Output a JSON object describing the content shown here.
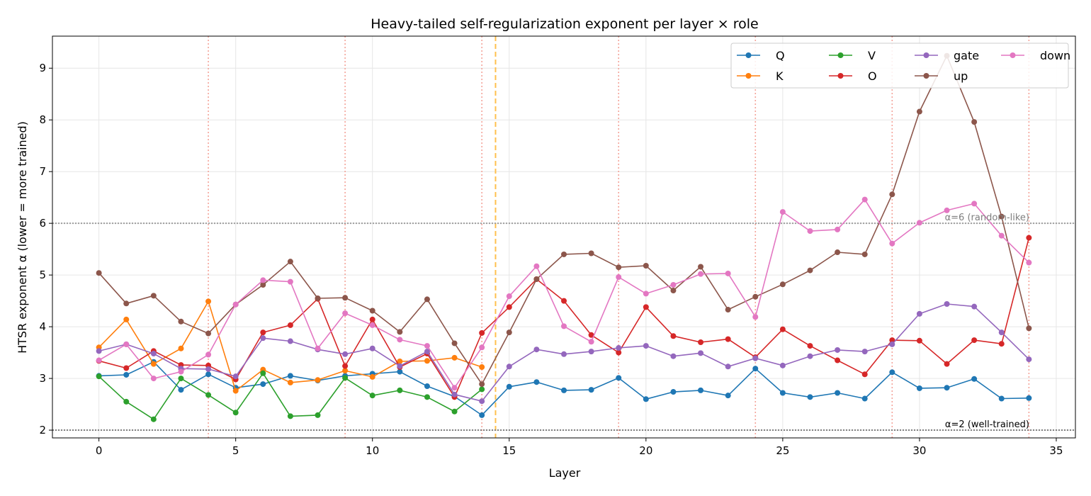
{
  "chart_data": {
    "type": "line",
    "title": "Heavy-tailed self-regularization exponent per layer × role",
    "xlabel": "Layer",
    "ylabel": "HTSR exponent α  (lower = more trained)",
    "xlim": [
      -1.7,
      35.7
    ],
    "ylim": [
      1.85,
      9.62
    ],
    "xticks": [
      0,
      5,
      10,
      15,
      20,
      25,
      30,
      35
    ],
    "yticks": [
      2,
      3,
      4,
      5,
      6,
      7,
      8,
      9
    ],
    "grid": true,
    "legend_position": "top-right",
    "series": [
      {
        "name": "Q",
        "color": "#1f77b4",
        "x": [
          0,
          1,
          2,
          3,
          4,
          5,
          6,
          7,
          8,
          9,
          10,
          11,
          12,
          13,
          14,
          15,
          16,
          17,
          18,
          19,
          20,
          21,
          22,
          23,
          24,
          25,
          26,
          27,
          28,
          29,
          30,
          31,
          32,
          33,
          34
        ],
        "values": [
          3.05,
          3.07,
          3.32,
          2.78,
          3.08,
          2.82,
          2.89,
          3.05,
          2.96,
          3.05,
          3.09,
          3.13,
          2.85,
          2.65,
          2.29,
          2.84,
          2.93,
          2.77,
          2.78,
          3.01,
          2.6,
          2.74,
          2.77,
          2.67,
          3.19,
          2.72,
          2.64,
          2.72,
          2.61,
          3.12,
          2.81,
          2.82,
          2.99,
          2.61,
          2.62
        ]
      },
      {
        "name": "K",
        "color": "#ff7f0e",
        "x": [
          0,
          1,
          2,
          3,
          4,
          5,
          6,
          7,
          8,
          9,
          10,
          11,
          12,
          13,
          14
        ],
        "values": [
          3.6,
          4.14,
          3.28,
          3.58,
          4.49,
          2.76,
          3.17,
          2.92,
          2.97,
          3.15,
          3.03,
          3.33,
          3.34,
          3.4,
          3.22
        ]
      },
      {
        "name": "V",
        "color": "#2ca02c",
        "x": [
          0,
          1,
          2,
          3,
          4,
          5,
          6,
          7,
          8,
          9,
          10,
          11,
          12,
          13,
          14
        ],
        "values": [
          3.04,
          2.55,
          2.21,
          3.0,
          2.68,
          2.34,
          3.1,
          2.27,
          2.29,
          3.01,
          2.67,
          2.77,
          2.64,
          2.36,
          2.79
        ]
      },
      {
        "name": "O",
        "color": "#d62728",
        "x": [
          0,
          1,
          2,
          3,
          4,
          5,
          6,
          7,
          8,
          9,
          10,
          11,
          12,
          13,
          14,
          15,
          16,
          17,
          18,
          19,
          20,
          21,
          22,
          23,
          24,
          25,
          26,
          27,
          28,
          29,
          30,
          31,
          32,
          33,
          34
        ],
        "values": [
          3.34,
          3.2,
          3.53,
          3.26,
          3.25,
          2.98,
          3.89,
          4.03,
          4.54,
          3.24,
          4.14,
          3.22,
          3.48,
          2.64,
          3.88,
          4.38,
          4.92,
          4.5,
          3.84,
          3.5,
          4.38,
          3.82,
          3.7,
          3.76,
          3.41,
          3.95,
          3.63,
          3.35,
          3.08,
          3.74,
          3.73,
          3.28,
          3.74,
          3.67,
          5.72
        ]
      },
      {
        "name": "gate",
        "color": "#9467bd",
        "x": [
          0,
          1,
          2,
          3,
          4,
          5,
          6,
          7,
          8,
          9,
          10,
          11,
          12,
          13,
          14,
          15,
          16,
          17,
          18,
          19,
          20,
          21,
          22,
          23,
          24,
          25,
          26,
          27,
          28,
          29,
          30,
          31,
          32,
          33,
          34
        ],
        "values": [
          3.53,
          3.66,
          3.48,
          3.19,
          3.18,
          3.04,
          3.78,
          3.72,
          3.56,
          3.47,
          3.58,
          3.24,
          3.52,
          2.69,
          2.56,
          3.23,
          3.56,
          3.47,
          3.52,
          3.59,
          3.63,
          3.43,
          3.49,
          3.23,
          3.39,
          3.25,
          3.43,
          3.55,
          3.52,
          3.66,
          4.25,
          4.44,
          4.39,
          3.89,
          3.37
        ]
      },
      {
        "name": "up",
        "color": "#8c564b",
        "x": [
          0,
          1,
          2,
          3,
          4,
          5,
          6,
          7,
          8,
          9,
          10,
          11,
          12,
          13,
          14,
          15,
          16,
          17,
          18,
          19,
          20,
          21,
          22,
          23,
          24,
          25,
          26,
          27,
          28,
          29,
          30,
          31,
          32,
          33,
          34
        ],
        "values": [
          5.04,
          4.45,
          4.6,
          4.1,
          3.87,
          4.43,
          4.81,
          5.26,
          4.55,
          4.56,
          4.31,
          3.9,
          4.53,
          3.68,
          2.89,
          3.89,
          4.92,
          5.4,
          5.42,
          5.15,
          5.18,
          4.7,
          5.16,
          4.33,
          4.58,
          4.82,
          5.09,
          5.44,
          5.4,
          6.56,
          8.16,
          9.24,
          7.96,
          6.13,
          3.97
        ]
      },
      {
        "name": "down",
        "color": "#e377c2",
        "x": [
          0,
          1,
          2,
          3,
          4,
          5,
          6,
          7,
          8,
          9,
          10,
          11,
          12,
          13,
          14,
          15,
          16,
          17,
          18,
          19,
          20,
          21,
          22,
          23,
          24,
          25,
          26,
          27,
          28,
          29,
          30,
          31,
          32,
          33,
          34
        ],
        "values": [
          3.35,
          3.66,
          3.0,
          3.13,
          3.46,
          4.43,
          4.9,
          4.87,
          3.58,
          4.26,
          4.03,
          3.75,
          3.63,
          2.82,
          3.6,
          4.59,
          5.17,
          4.01,
          3.71,
          4.96,
          4.64,
          4.81,
          5.02,
          5.03,
          4.19,
          6.22,
          5.85,
          5.88,
          6.46,
          5.61,
          6.01,
          6.25,
          6.38,
          5.76,
          5.24
        ]
      }
    ],
    "reference_lines": [
      {
        "y": 6,
        "label": "α=6 (random-like)",
        "color": "#9e9e9e",
        "label_color": "#7f7f7f"
      },
      {
        "y": 2,
        "label": "α=2 (well-trained)",
        "color": "#7f7f7f",
        "label_color": "#000000"
      }
    ],
    "vertical_markers": {
      "dotted_layers": [
        4,
        9,
        14,
        19,
        24,
        29,
        34
      ],
      "dotted_color": "#f4a49a",
      "dashed_x": 14.5,
      "dashed_color": "#ffc04d"
    }
  }
}
